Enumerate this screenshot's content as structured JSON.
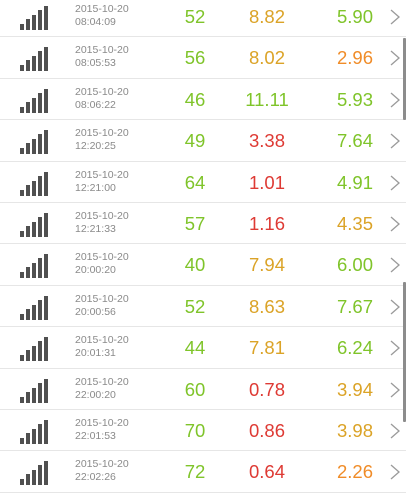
{
  "colors": {
    "green": "#7fc42a",
    "amber": "#dba327",
    "orange": "#f08c28",
    "red": "#de3a34",
    "timestamp": "#8a8a8a",
    "icon": "#505050"
  },
  "icons": {
    "signal": "signal-strength-icon",
    "chevron": "chevron-right-icon"
  },
  "rows": [
    {
      "date": "2015-10-20",
      "time": "08:04:09",
      "v1": "52",
      "v1c": "green",
      "v2": "8.82",
      "v2c": "amber",
      "v3": "5.90",
      "v3c": "green"
    },
    {
      "date": "2015-10-20",
      "time": "08:05:53",
      "v1": "56",
      "v1c": "green",
      "v2": "8.02",
      "v2c": "amber",
      "v3": "2.96",
      "v3c": "orange"
    },
    {
      "date": "2015-10-20",
      "time": "08:06:22",
      "v1": "46",
      "v1c": "green",
      "v2": "11.11",
      "v2c": "green",
      "v3": "5.93",
      "v3c": "green"
    },
    {
      "date": "2015-10-20",
      "time": "12:20:25",
      "v1": "49",
      "v1c": "green",
      "v2": "3.38",
      "v2c": "red",
      "v3": "7.64",
      "v3c": "green"
    },
    {
      "date": "2015-10-20",
      "time": "12:21:00",
      "v1": "64",
      "v1c": "green",
      "v2": "1.01",
      "v2c": "red",
      "v3": "4.91",
      "v3c": "green"
    },
    {
      "date": "2015-10-20",
      "time": "12:21:33",
      "v1": "57",
      "v1c": "green",
      "v2": "1.16",
      "v2c": "red",
      "v3": "4.35",
      "v3c": "amber"
    },
    {
      "date": "2015-10-20",
      "time": "20:00:20",
      "v1": "40",
      "v1c": "green",
      "v2": "7.94",
      "v2c": "amber",
      "v3": "6.00",
      "v3c": "green"
    },
    {
      "date": "2015-10-20",
      "time": "20:00:56",
      "v1": "52",
      "v1c": "green",
      "v2": "8.63",
      "v2c": "amber",
      "v3": "7.67",
      "v3c": "green"
    },
    {
      "date": "2015-10-20",
      "time": "20:01:31",
      "v1": "44",
      "v1c": "green",
      "v2": "7.81",
      "v2c": "amber",
      "v3": "6.24",
      "v3c": "green"
    },
    {
      "date": "2015-10-20",
      "time": "22:00:20",
      "v1": "60",
      "v1c": "green",
      "v2": "0.78",
      "v2c": "red",
      "v3": "3.94",
      "v3c": "amber"
    },
    {
      "date": "2015-10-20",
      "time": "22:01:53",
      "v1": "70",
      "v1c": "green",
      "v2": "0.86",
      "v2c": "red",
      "v3": "3.98",
      "v3c": "amber"
    },
    {
      "date": "2015-10-20",
      "time": "22:02:26",
      "v1": "72",
      "v1c": "green",
      "v2": "0.64",
      "v2c": "red",
      "v3": "2.26",
      "v3c": "orange"
    }
  ]
}
